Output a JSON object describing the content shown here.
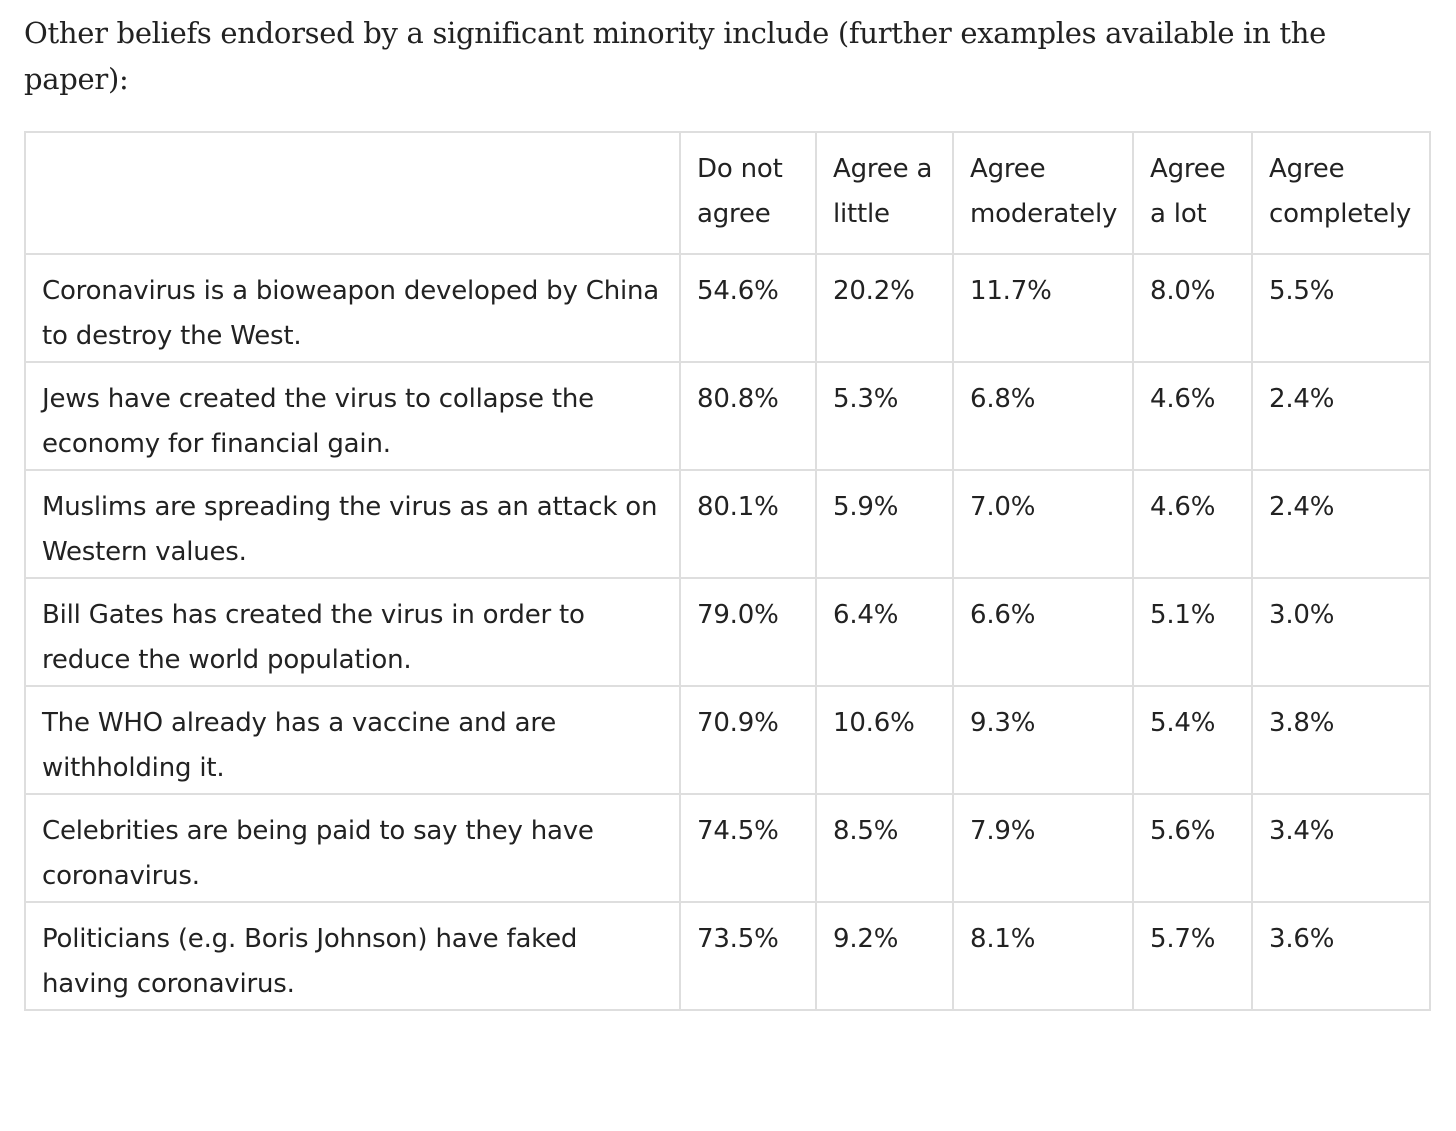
{
  "intro": "Other beliefs endorsed by a significant minority include (further examples available in the paper):",
  "table": {
    "headers": [
      "",
      "Do not agree",
      "Agree a little",
      "Agree moderately",
      "Agree a lot",
      "Agree completely"
    ],
    "rows": [
      {
        "statement": "Coronavirus is a bioweapon developed by China to destroy the West.",
        "values": [
          "54.6%",
          "20.2%",
          "11.7%",
          "8.0%",
          "5.5%"
        ]
      },
      {
        "statement": "Jews have created the virus to collapse the economy for financial gain.",
        "values": [
          "80.8%",
          "5.3%",
          "6.8%",
          "4.6%",
          "2.4%"
        ]
      },
      {
        "statement": "Muslims are spreading the virus as an attack on Western values.",
        "values": [
          "80.1%",
          "5.9%",
          "7.0%",
          "4.6%",
          "2.4%"
        ]
      },
      {
        "statement": "Bill Gates has created the virus in order to reduce the world population.",
        "values": [
          "79.0%",
          "6.4%",
          "6.6%",
          "5.1%",
          "3.0%"
        ]
      },
      {
        "statement": "The WHO already has a vaccine and are withholding it.",
        "values": [
          "70.9%",
          "10.6%",
          "9.3%",
          "5.4%",
          "3.8%"
        ]
      },
      {
        "statement": "Celebrities are being paid to say they have coronavirus.",
        "values": [
          "74.5%",
          "8.5%",
          "7.9%",
          "5.6%",
          "3.4%"
        ]
      },
      {
        "statement": "Politicians (e.g. Boris Johnson) have faked having coronavirus.",
        "values": [
          "73.5%",
          "9.2%",
          "8.1%",
          "5.7%",
          "3.6%"
        ]
      }
    ]
  }
}
